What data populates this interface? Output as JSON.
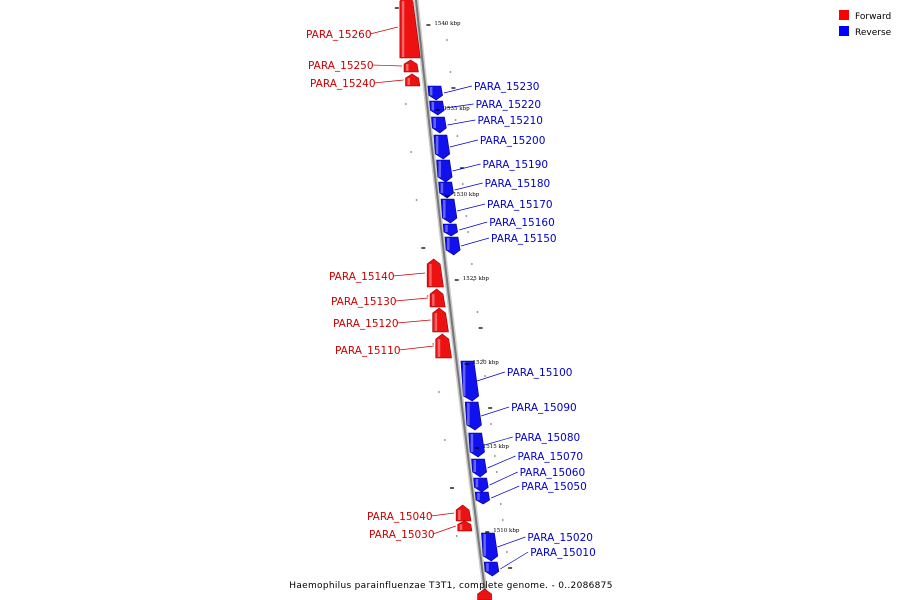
{
  "caption": "Haemophilus parainfluenzae T3T1, complete genome. - 0..2086875",
  "legend": [
    {
      "label": "Forward",
      "color": "#ff0000"
    },
    {
      "label": "Reverse",
      "color": "#0000ff"
    }
  ],
  "colors": {
    "forward": "#ee1111",
    "forward_dark": "#990000",
    "reverse": "#1111ee",
    "reverse_dark": "#000088",
    "axis": "#777777",
    "forward_label": "#cc0000",
    "reverse_label": "#0000cc"
  },
  "ticks": [
    {
      "label": "1540 kbp",
      "kbp": 1540
    },
    {
      "label": "1535 kbp",
      "kbp": 1535
    },
    {
      "label": "1530 kbp",
      "kbp": 1530
    },
    {
      "label": "1525 kbp",
      "kbp": 1525
    },
    {
      "label": "1520 kbp",
      "kbp": 1520
    },
    {
      "label": "1515 kbp",
      "kbp": 1515
    },
    {
      "label": "1510 kbp",
      "kbp": 1510
    }
  ],
  "genes": [
    {
      "name": "PARA_15260",
      "strand": "forward"
    },
    {
      "name": "PARA_15250",
      "strand": "forward"
    },
    {
      "name": "PARA_15240",
      "strand": "forward"
    },
    {
      "name": "PARA_15230",
      "strand": "reverse"
    },
    {
      "name": "PARA_15220",
      "strand": "reverse"
    },
    {
      "name": "PARA_15210",
      "strand": "reverse"
    },
    {
      "name": "PARA_15200",
      "strand": "reverse"
    },
    {
      "name": "PARA_15190",
      "strand": "reverse"
    },
    {
      "name": "PARA_15180",
      "strand": "reverse"
    },
    {
      "name": "PARA_15170",
      "strand": "reverse"
    },
    {
      "name": "PARA_15160",
      "strand": "reverse"
    },
    {
      "name": "PARA_15150",
      "strand": "reverse"
    },
    {
      "name": "PARA_15140",
      "strand": "forward"
    },
    {
      "name": "PARA_15130",
      "strand": "forward"
    },
    {
      "name": "PARA_15120",
      "strand": "forward"
    },
    {
      "name": "PARA_15110",
      "strand": "forward"
    },
    {
      "name": "PARA_15100",
      "strand": "reverse"
    },
    {
      "name": "PARA_15090",
      "strand": "reverse"
    },
    {
      "name": "PARA_15080",
      "strand": "reverse"
    },
    {
      "name": "PARA_15070",
      "strand": "reverse"
    },
    {
      "name": "PARA_15060",
      "strand": "reverse"
    },
    {
      "name": "PARA_15050",
      "strand": "reverse"
    },
    {
      "name": "PARA_15040",
      "strand": "forward"
    },
    {
      "name": "PARA_15030",
      "strand": "forward"
    },
    {
      "name": "PARA_15020",
      "strand": "reverse"
    },
    {
      "name": "PARA_15010",
      "strand": "reverse"
    }
  ]
}
